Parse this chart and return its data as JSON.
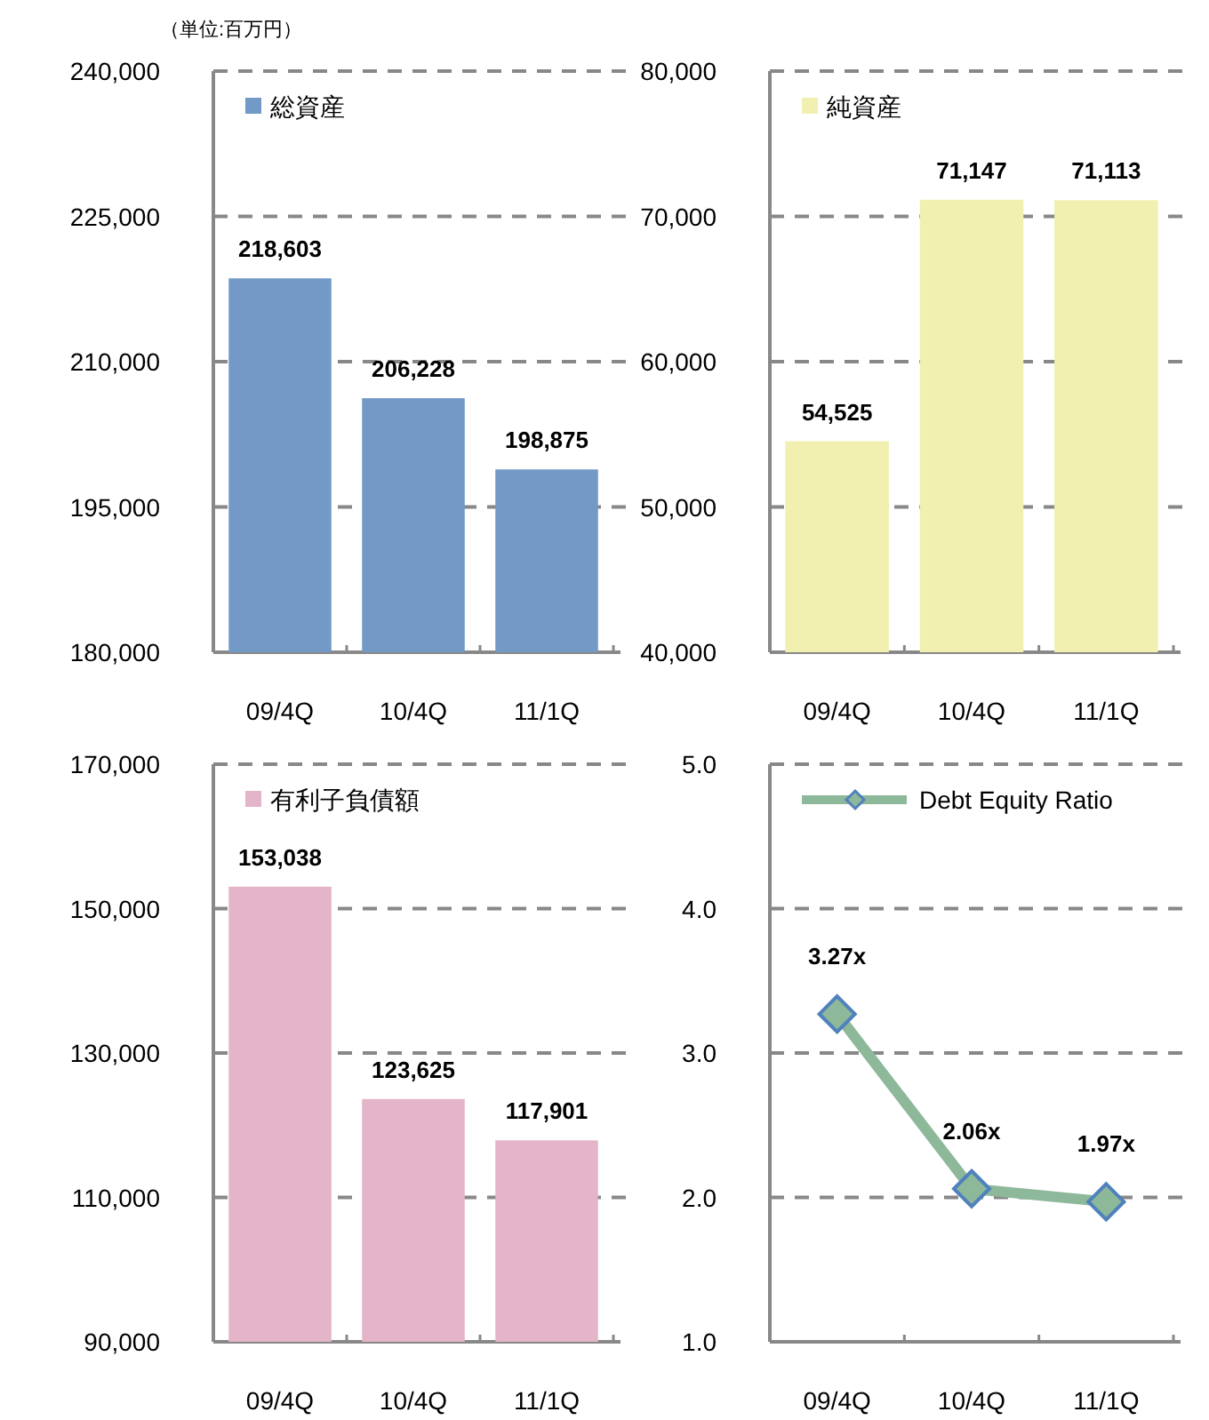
{
  "chart_data": [
    {
      "type": "bar",
      "categories": [
        "09/4Q",
        "10/4Q",
        "11/1Q"
      ],
      "series": [
        {
          "name": "総資産",
          "color": "#7399c6",
          "values": [
            218603,
            206228,
            198875
          ],
          "value_labels": [
            "218,603",
            "206,228",
            "198,875"
          ]
        }
      ],
      "ylim": [
        180000,
        240000
      ],
      "yticks": [
        {
          "value": 180000,
          "label": "180,000"
        },
        {
          "value": 195000,
          "label": "195,000"
        },
        {
          "value": 210000,
          "label": "210,000"
        },
        {
          "value": 225000,
          "label": "225,000"
        },
        {
          "value": 240000,
          "label": "240,000"
        }
      ],
      "grid": "y",
      "legend": "top left",
      "annotations": [
        "（単位:百万円）"
      ]
    },
    {
      "type": "bar",
      "categories": [
        "09/4Q",
        "10/4Q",
        "11/1Q"
      ],
      "series": [
        {
          "name": "純資産",
          "color": "#f2f0b0",
          "values": [
            54525,
            71147,
            71113
          ],
          "value_labels": [
            "54,525",
            "71,147",
            "71,113"
          ]
        }
      ],
      "ylim": [
        40000,
        80000
      ],
      "yticks": [
        {
          "value": 40000,
          "label": "40,000"
        },
        {
          "value": 50000,
          "label": "50,000"
        },
        {
          "value": 60000,
          "label": "60,000"
        },
        {
          "value": 70000,
          "label": "70,000"
        },
        {
          "value": 80000,
          "label": "80,000"
        }
      ],
      "grid": "y",
      "legend": "top left"
    },
    {
      "type": "bar",
      "categories": [
        "09/4Q",
        "10/4Q",
        "11/1Q"
      ],
      "series": [
        {
          "name": "有利子負債額",
          "color": "#e4b4c8",
          "values": [
            153038,
            123625,
            117901
          ],
          "value_labels": [
            "153,038",
            "123,625",
            "117,901"
          ]
        }
      ],
      "ylim": [
        90000,
        170000
      ],
      "yticks": [
        {
          "value": 90000,
          "label": "90,000"
        },
        {
          "value": 110000,
          "label": "110,000"
        },
        {
          "value": 130000,
          "label": "130,000"
        },
        {
          "value": 150000,
          "label": "150,000"
        },
        {
          "value": 170000,
          "label": "170,000"
        }
      ],
      "grid": "y",
      "legend": "top left"
    },
    {
      "type": "line",
      "categories": [
        "09/4Q",
        "10/4Q",
        "11/1Q"
      ],
      "series": [
        {
          "name": "Debt Equity Ratio",
          "color": "#8db89a",
          "values": [
            3.27,
            2.06,
            1.97
          ],
          "value_labels": [
            "3.27x",
            "2.06x",
            "1.97x"
          ]
        }
      ],
      "ylim": [
        1,
        5
      ],
      "yticks": [
        {
          "value": 1,
          "label": "1.0"
        },
        {
          "value": 2,
          "label": "2.0"
        },
        {
          "value": 3,
          "label": "3.0"
        },
        {
          "value": 4,
          "label": "4.0"
        },
        {
          "value": 5,
          "label": "5.0"
        }
      ],
      "grid": "y",
      "legend": "top left",
      "marker": "diamond"
    }
  ]
}
